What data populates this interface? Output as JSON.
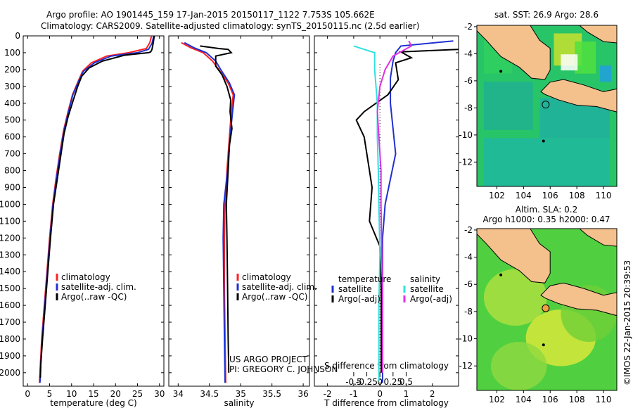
{
  "header": {
    "line1": "Argo profile: AO 1901445_159 17-Jan-2015 20150117_1122 7.753S 105.662E",
    "line2": "Climatology: CARS2009. Satellite-adjusted climatology: synTS_20150115.nc (2.5d earlier)"
  },
  "credits": {
    "project": "US ARGO PROJECT",
    "pi": "PI: GREGORY C. JOHNSON",
    "imos": "©IMOS 22-Jan-2015 20:39:53"
  },
  "colors": {
    "climatology": "#ff2020",
    "satellite_adj": "#2030d0",
    "argo": "#000000",
    "salinity_sat": "#30e0e0",
    "salinity_argo": "#e030e0",
    "land": "#f4c08c"
  },
  "chart_data": [
    {
      "type": "line",
      "name": "temperature-profile",
      "xlabel": "temperature (deg C)",
      "xticks": [
        0,
        5,
        10,
        15,
        20,
        25,
        30
      ],
      "xlim": [
        -1,
        31
      ],
      "ylim": [
        0,
        2080
      ],
      "yticks": [
        0,
        100,
        200,
        300,
        400,
        500,
        600,
        700,
        800,
        900,
        1000,
        1100,
        1200,
        1300,
        1400,
        1500,
        1600,
        1700,
        1800,
        1900,
        2000
      ],
      "legend": [
        "climatology",
        "satellite-adj. clim.",
        "Argo(..raw -QC)"
      ],
      "series": [
        {
          "name": "climatology",
          "points": [
            [
              28.2,
              0
            ],
            [
              27.8,
              40
            ],
            [
              27,
              75
            ],
            [
              23,
              100
            ],
            [
              18,
              120
            ],
            [
              14.5,
              160
            ],
            [
              12.5,
              210
            ],
            [
              11.5,
              270
            ],
            [
              10.2,
              350
            ],
            [
              9.2,
              450
            ],
            [
              8.2,
              560
            ],
            [
              7.3,
              700
            ],
            [
              6.5,
              840
            ],
            [
              5.7,
              1000
            ],
            [
              5,
              1200
            ],
            [
              4.4,
              1400
            ],
            [
              3.8,
              1600
            ],
            [
              3.2,
              1800
            ],
            [
              2.9,
              1950
            ],
            [
              2.7,
              2060
            ]
          ]
        },
        {
          "name": "satellite-adj. clim.",
          "points": [
            [
              28.7,
              0
            ],
            [
              28.3,
              45
            ],
            [
              27.5,
              80
            ],
            [
              25,
              100
            ],
            [
              19,
              120
            ],
            [
              15.2,
              160
            ],
            [
              12.7,
              210
            ],
            [
              11.6,
              270
            ],
            [
              10.3,
              350
            ],
            [
              9.3,
              450
            ],
            [
              8.3,
              560
            ],
            [
              7.4,
              700
            ],
            [
              6.6,
              840
            ],
            [
              5.8,
              1000
            ],
            [
              5.1,
              1200
            ],
            [
              4.5,
              1400
            ],
            [
              3.9,
              1600
            ],
            [
              3.3,
              1800
            ],
            [
              3,
              1950
            ],
            [
              2.8,
              2060
            ]
          ]
        },
        {
          "name": "Argo(..raw -QC)",
          "points": [
            [
              28.8,
              0
            ],
            [
              28.6,
              40
            ],
            [
              28.3,
              80
            ],
            [
              28,
              95
            ],
            [
              27.5,
              100
            ],
            [
              22,
              115
            ],
            [
              17,
              150
            ],
            [
              14,
              190
            ],
            [
              12.3,
              240
            ],
            [
              11.4,
              300
            ],
            [
              10.4,
              380
            ],
            [
              9.2,
              480
            ],
            [
              8.3,
              580
            ],
            [
              7.6,
              700
            ],
            [
              6.8,
              840
            ],
            [
              5.9,
              1000
            ],
            [
              5.2,
              1200
            ],
            [
              4.6,
              1400
            ],
            [
              4,
              1600
            ],
            [
              3.4,
              1800
            ],
            [
              3,
              1950
            ],
            [
              2.9,
              2030
            ]
          ]
        }
      ]
    },
    {
      "type": "line",
      "name": "salinity-profile",
      "xlabel": "salinity",
      "xticks": [
        34,
        34.5,
        35,
        35.5,
        36
      ],
      "xlim": [
        33.85,
        36.1
      ],
      "ylim": [
        0,
        2080
      ],
      "legend": [
        "climatology",
        "satellite-adj. clim.",
        "Argo(..raw -QC)"
      ],
      "series": [
        {
          "name": "climatology",
          "points": [
            [
              34.05,
              40
            ],
            [
              34.2,
              70
            ],
            [
              34.4,
              100
            ],
            [
              34.55,
              150
            ],
            [
              34.65,
              200
            ],
            [
              34.8,
              280
            ],
            [
              34.88,
              350
            ],
            [
              34.85,
              450
            ],
            [
              34.82,
              600
            ],
            [
              34.78,
              800
            ],
            [
              34.75,
              1000
            ],
            [
              34.74,
              1200
            ],
            [
              34.74,
              1500
            ],
            [
              34.75,
              1800
            ],
            [
              34.76,
              2060
            ]
          ]
        },
        {
          "name": "satellite-adj. clim.",
          "points": [
            [
              34.1,
              40
            ],
            [
              34.25,
              70
            ],
            [
              34.45,
              100
            ],
            [
              34.6,
              150
            ],
            [
              34.68,
              200
            ],
            [
              34.82,
              280
            ],
            [
              34.9,
              350
            ],
            [
              34.87,
              450
            ],
            [
              34.83,
              600
            ],
            [
              34.79,
              800
            ],
            [
              34.73,
              1000
            ],
            [
              34.72,
              1200
            ],
            [
              34.73,
              1500
            ],
            [
              34.74,
              1800
            ],
            [
              34.75,
              2060
            ]
          ]
        },
        {
          "name": "Argo(..raw -QC)",
          "points": [
            [
              34.35,
              60
            ],
            [
              34.55,
              70
            ],
            [
              34.65,
              75
            ],
            [
              34.8,
              80
            ],
            [
              34.85,
              100
            ],
            [
              34.6,
              120
            ],
            [
              34.6,
              180
            ],
            [
              34.7,
              230
            ],
            [
              34.78,
              300
            ],
            [
              34.84,
              380
            ],
            [
              34.83,
              450
            ],
            [
              34.86,
              550
            ],
            [
              34.82,
              650
            ],
            [
              34.8,
              800
            ],
            [
              34.77,
              1000
            ],
            [
              34.78,
              1200
            ],
            [
              34.79,
              1500
            ],
            [
              34.8,
              1800
            ],
            [
              34.81,
              2000
            ]
          ]
        }
      ]
    },
    {
      "type": "line",
      "name": "difference-profile",
      "xlabel": "T difference from climatology",
      "xlabel_top": "S difference from climatology",
      "xticks": [
        -2,
        -1,
        0,
        1,
        2
      ],
      "sticks": [
        -0.5,
        -0.25,
        0,
        0.25,
        0.5
      ],
      "slabels": [
        "-0.5",
        "-0.25",
        "0",
        "0.25",
        "0.5"
      ],
      "xlim": [
        -2.5,
        3
      ],
      "ylim": [
        0,
        2080
      ],
      "legend_temperature": "temperature",
      "legend_salinity": "salinity",
      "legend_satellite": "satellite",
      "legend_argo": "Argo(-adj)",
      "series": [
        {
          "name": "temperature satellite",
          "points": [
            [
              2.8,
              30
            ],
            [
              0.8,
              60
            ],
            [
              0.6,
              100
            ],
            [
              0.5,
              150
            ],
            [
              0.4,
              250
            ],
            [
              0.4,
              400
            ],
            [
              0.5,
              550
            ],
            [
              0.6,
              700
            ],
            [
              0.4,
              850
            ],
            [
              0.2,
              1000
            ],
            [
              0.1,
              1200
            ],
            [
              0.1,
              1500
            ],
            [
              0.1,
              1800
            ],
            [
              0.1,
              2060
            ]
          ]
        },
        {
          "name": "temperature Argo(-adj)",
          "points": [
            [
              3,
              80
            ],
            [
              0.8,
              95
            ],
            [
              1.2,
              130
            ],
            [
              0.6,
              160
            ],
            [
              0.7,
              260
            ],
            [
              0.3,
              350
            ],
            [
              -0.6,
              450
            ],
            [
              -0.9,
              500
            ],
            [
              -0.6,
              600
            ],
            [
              -0.4,
              800
            ],
            [
              -0.3,
              900
            ],
            [
              -0.4,
              1100
            ],
            [
              0,
              1250
            ],
            [
              0.05,
              1500
            ],
            [
              0.05,
              2000
            ]
          ]
        },
        {
          "name": "salinity satellite",
          "points": [
            [
              -0.5,
              60
            ],
            [
              -0.3,
              80
            ],
            [
              -0.1,
              100
            ],
            [
              -0.1,
              200
            ],
            [
              -0.05,
              400
            ],
            [
              -0.05,
              600
            ],
            [
              -0.03,
              800
            ],
            [
              -0.02,
              1000
            ],
            [
              0,
              1300
            ],
            [
              -0.02,
              1600
            ],
            [
              -0.02,
              2050
            ]
          ]
        },
        {
          "name": "salinity Argo(-adj)",
          "points": [
            [
              0.55,
              30
            ],
            [
              0.6,
              60
            ],
            [
              0.25,
              120
            ],
            [
              0.1,
              200
            ],
            [
              0,
              300
            ],
            [
              -0.05,
              450
            ],
            [
              -0.02,
              600
            ],
            [
              0.02,
              800
            ],
            [
              0.02,
              1000
            ],
            [
              0.03,
              1200
            ],
            [
              0.05,
              1500
            ],
            [
              0.05,
              1800
            ],
            [
              0.05,
              2000
            ]
          ]
        }
      ]
    },
    {
      "type": "heatmap",
      "name": "sst-map",
      "title": "sat. SST: 26.9 Argo: 28.6",
      "xticks": [
        102,
        104,
        106,
        108,
        110
      ],
      "yticks": [
        -2,
        -4,
        -6,
        -8,
        -10,
        -12
      ],
      "xlim": [
        100.5,
        111
      ],
      "ylim": [
        -13.8,
        -1.9
      ],
      "marker": [
        105.662,
        -7.753
      ]
    },
    {
      "type": "heatmap",
      "name": "sla-map",
      "title": "Altim. SLA: 0.2",
      "subtitle": "Argo h1000: 0.35 h2000: 0.47",
      "xticks": [
        102,
        104,
        106,
        108,
        110
      ],
      "yticks": [
        -2,
        -4,
        -6,
        -8,
        -10,
        -12
      ],
      "xlim": [
        100.5,
        111
      ],
      "ylim": [
        -13.8,
        -1.9
      ],
      "marker": [
        105.662,
        -7.753
      ]
    }
  ]
}
